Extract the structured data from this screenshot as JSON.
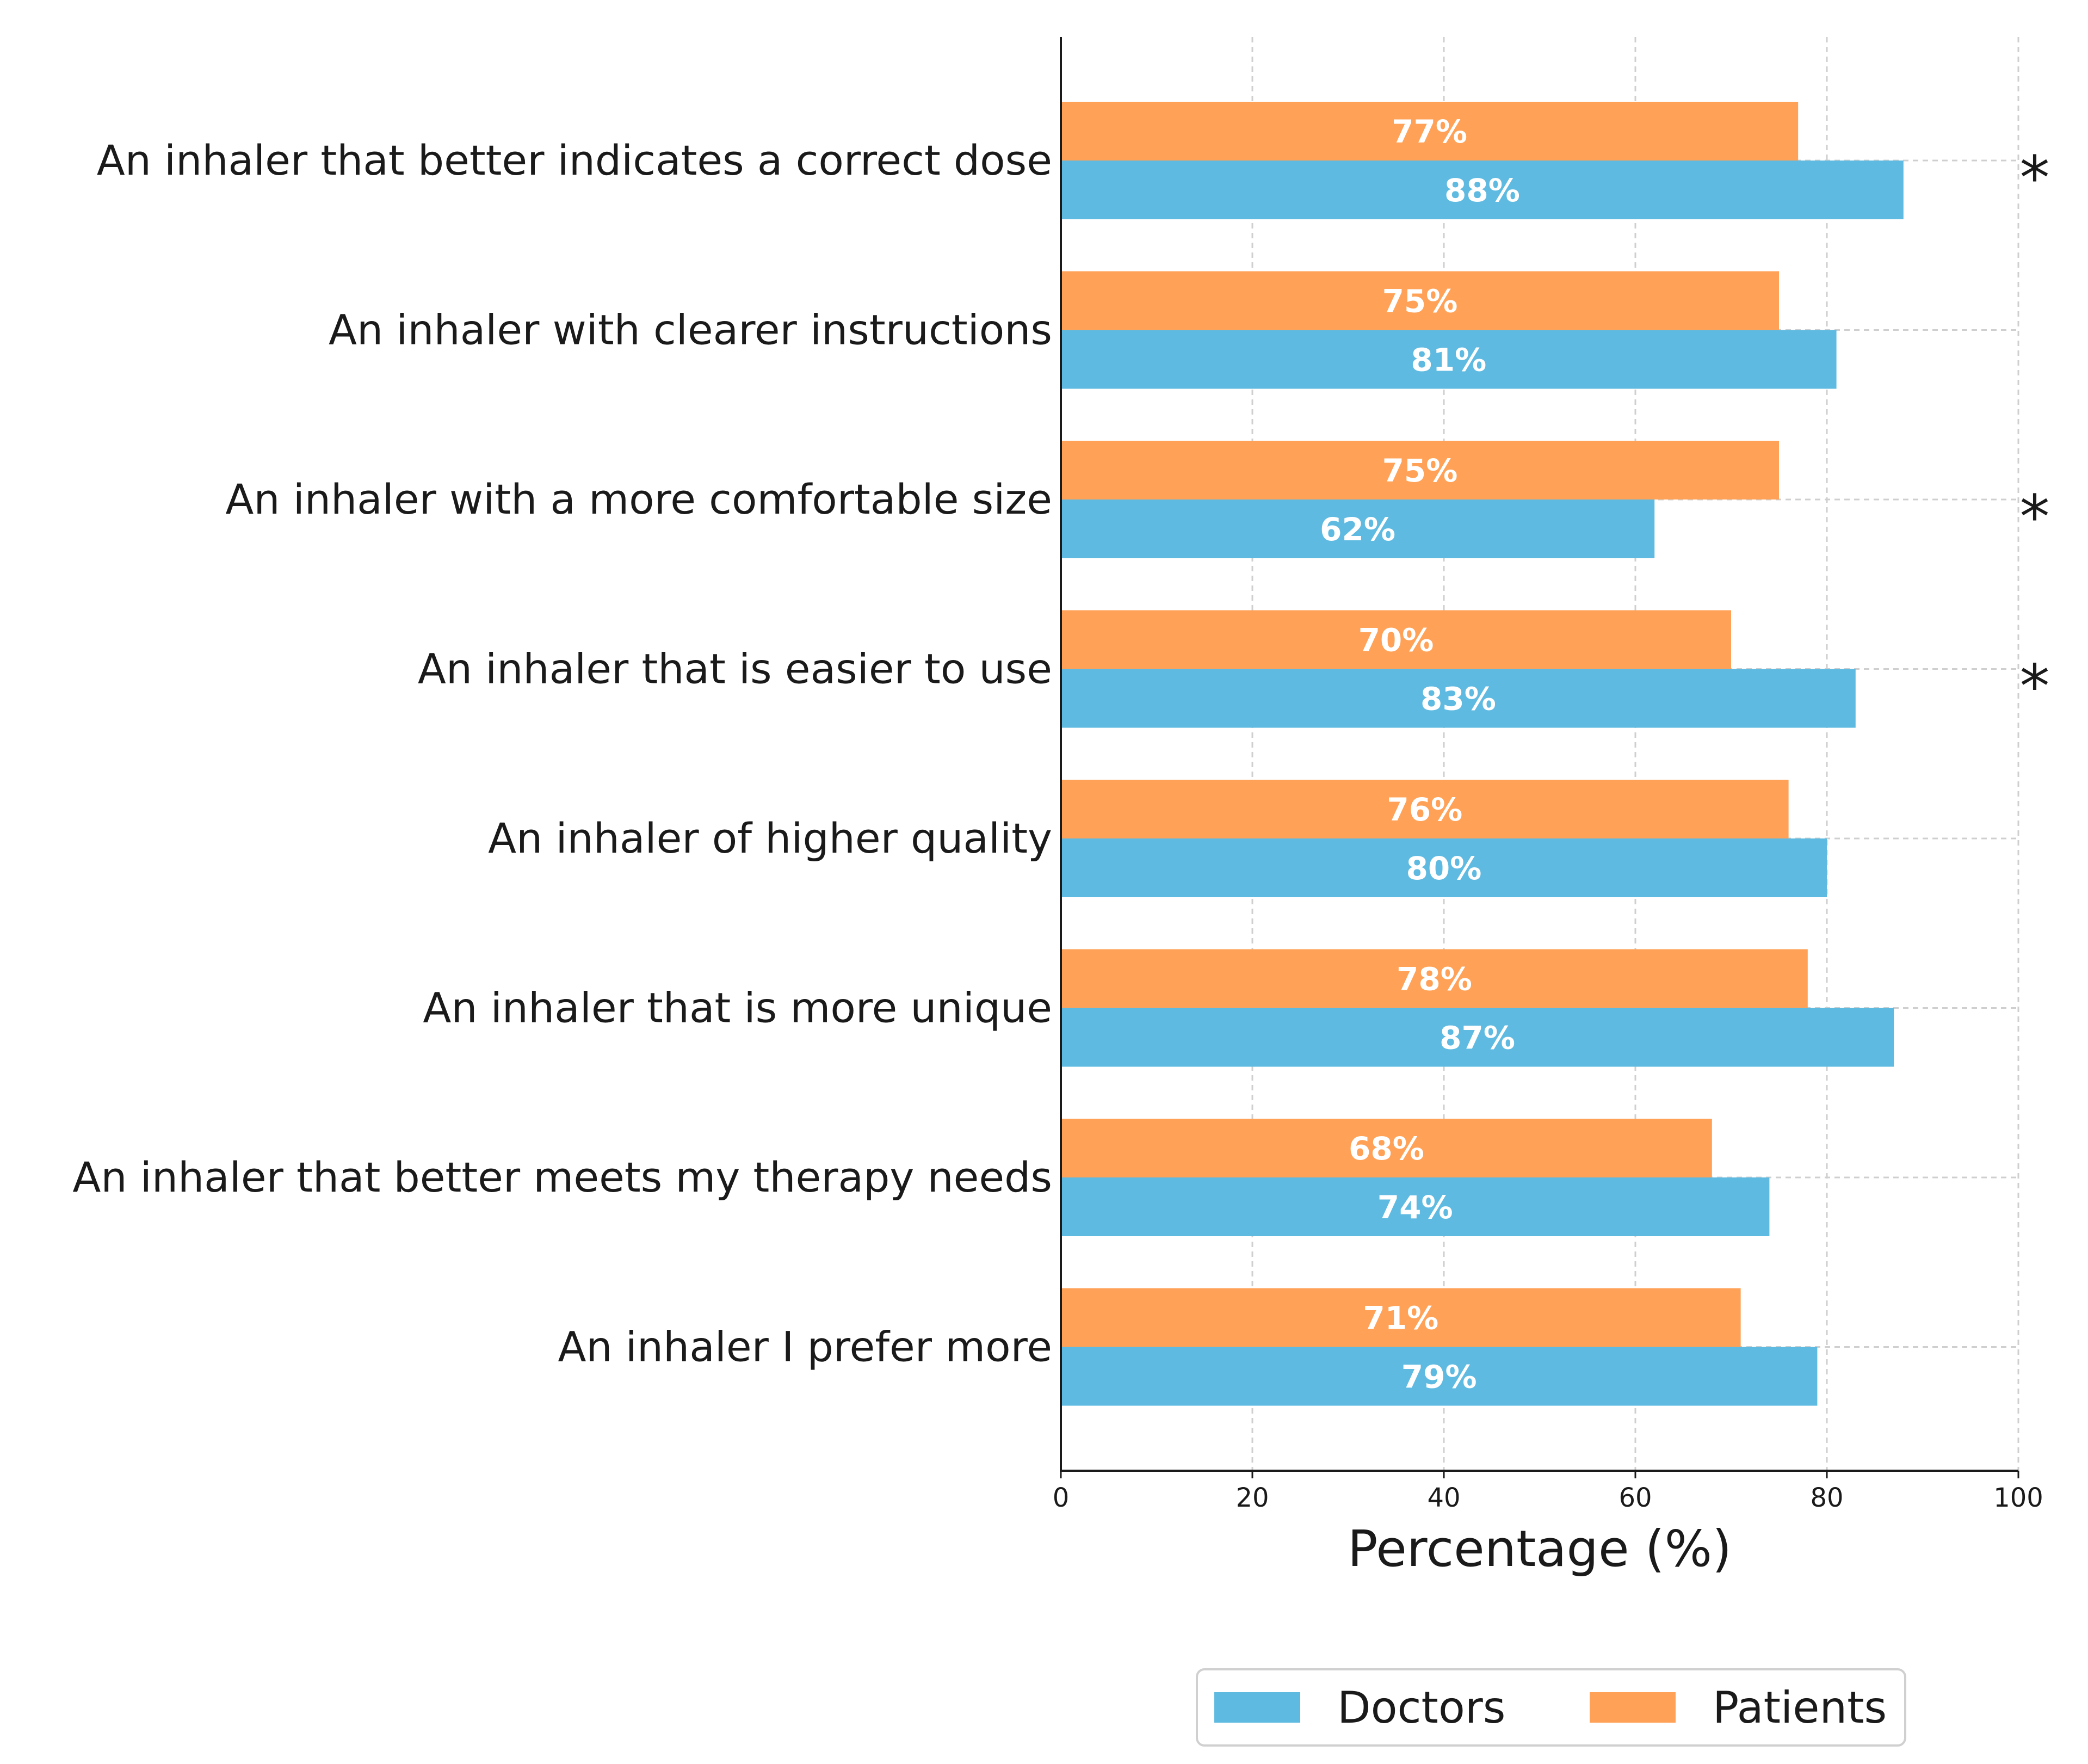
{
  "chart_data": {
    "type": "bar",
    "orientation": "horizontal",
    "categories": [
      "An inhaler that better indicates a correct dose",
      "An inhaler with clearer instructions",
      "An inhaler with a more comfortable size",
      "An inhaler that is easier to use",
      "An inhaler of higher quality",
      "An inhaler that is more unique",
      "An inhaler that better meets my therapy needs",
      "An inhaler I prefer more"
    ],
    "series": [
      {
        "name": "Patients",
        "color": "#FFA257",
        "values": [
          77,
          75,
          75,
          70,
          76,
          78,
          68,
          71
        ],
        "labels": [
          "77%",
          "75%",
          "75%",
          "70%",
          "76%",
          "78%",
          "68%",
          "71%"
        ]
      },
      {
        "name": "Doctors",
        "color": "#5EBAE0",
        "values": [
          88,
          81,
          62,
          83,
          80,
          87,
          74,
          79
        ],
        "labels": [
          "88%",
          "81%",
          "62%",
          "83%",
          "80%",
          "87%",
          "74%",
          "79%"
        ]
      }
    ],
    "significance_marker": "*",
    "significant": [
      true,
      false,
      true,
      true,
      false,
      false,
      false,
      false
    ],
    "xlabel": "Percentage (%)",
    "ylabel": "",
    "xlim": [
      0,
      100
    ],
    "xticks": [
      0,
      20,
      40,
      60,
      80,
      100
    ],
    "xtick_labels": [
      "0",
      "20",
      "40",
      "60",
      "80",
      "100"
    ],
    "grid": true,
    "legend": {
      "placement": "bottom-center",
      "entries": [
        {
          "name": "Doctors",
          "color": "#5EBAE0"
        },
        {
          "name": "Patients",
          "color": "#FFA257"
        }
      ]
    }
  }
}
